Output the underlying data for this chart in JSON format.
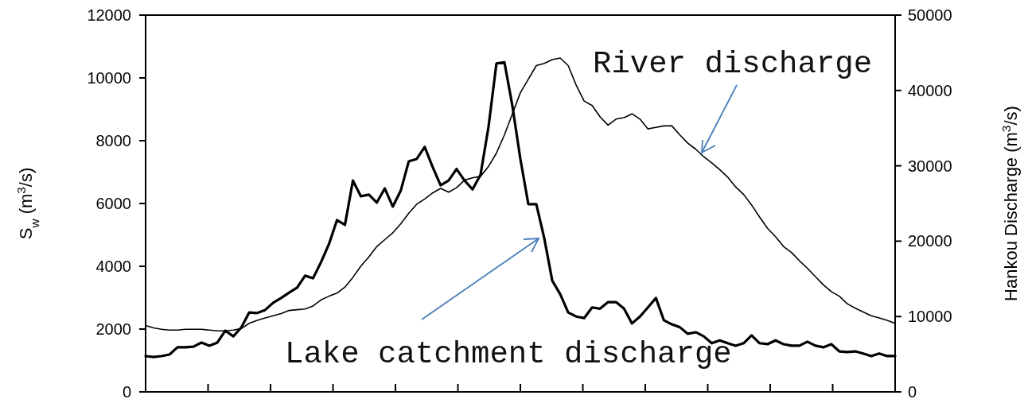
{
  "chart_data": {
    "type": "line",
    "ylabel": "S$_{w}$ (m$^{3}$/s)",
    "y2label": "Hankou Discharge (m$^{3}$/s)",
    "annotations": [
      "River discharge",
      "Lake catchment discharge"
    ],
    "categories": [
      null,
      null,
      null,
      null,
      null,
      null,
      null,
      null,
      null,
      null,
      null,
      null,
      null,
      null,
      null,
      null,
      null,
      null,
      null,
      null,
      null,
      null,
      null,
      null,
      null,
      null,
      null,
      null,
      null,
      null,
      null,
      null,
      null,
      null,
      null,
      null,
      null,
      null,
      null,
      null,
      null,
      null,
      null,
      null,
      null,
      null,
      null,
      null,
      null,
      null,
      null,
      null,
      null,
      null,
      null,
      null,
      null,
      null,
      null,
      null,
      null,
      null,
      null,
      null,
      null,
      null,
      null,
      null,
      null,
      null,
      null,
      null,
      null,
      null,
      null,
      null,
      null,
      null,
      null,
      null,
      null,
      null,
      null,
      null,
      null,
      null,
      null,
      null,
      null,
      null,
      null,
      null,
      null,
      null,
      null
    ],
    "series": [
      {
        "color": "#000000",
        "axis": "y",
        "values": [
          1140,
          1110,
          1140,
          1190,
          1420,
          1420,
          1440,
          1570,
          1470,
          1570,
          1950,
          1770,
          2050,
          2530,
          2510,
          2610,
          2840,
          2990,
          3160,
          3320,
          3700,
          3620,
          4130,
          4710,
          5470,
          5320,
          6730,
          6230,
          6280,
          6030,
          6480,
          5900,
          6410,
          7340,
          7420,
          7800,
          7160,
          6580,
          6730,
          7100,
          6730,
          6450,
          6910,
          8430,
          10460,
          10500,
          9110,
          7420,
          5980,
          5980,
          4890,
          3540,
          3110,
          2530,
          2400,
          2350,
          2690,
          2650,
          2860,
          2860,
          2650,
          2180,
          2400,
          2690,
          2990,
          2280,
          2150,
          2060,
          1850,
          1900,
          1770,
          1550,
          1640,
          1550,
          1470,
          1550,
          1800,
          1550,
          1520,
          1640,
          1520,
          1470,
          1470,
          1600,
          1470,
          1420,
          1520,
          1290,
          1270,
          1290,
          1220,
          1140,
          1220,
          1140,
          1140
        ]
      },
      {
        "color": "#000000",
        "axis": "y2",
        "values": [
          8800,
          8500,
          8300,
          8200,
          8200,
          8300,
          8300,
          8300,
          8200,
          8100,
          8100,
          8200,
          8400,
          9100,
          9500,
          9800,
          10100,
          10400,
          10800,
          10900,
          11000,
          11400,
          12200,
          12700,
          13100,
          13900,
          15200,
          16700,
          17900,
          19300,
          20200,
          21100,
          22300,
          23700,
          24900,
          25600,
          26400,
          27000,
          26500,
          27100,
          28100,
          28400,
          28600,
          29900,
          31700,
          34100,
          36900,
          39700,
          41500,
          43300,
          43600,
          44100,
          44300,
          43300,
          40700,
          38600,
          38000,
          36500,
          35400,
          36200,
          36400,
          36900,
          36200,
          34900,
          35100,
          35300,
          35300,
          34100,
          33000,
          32200,
          31200,
          30400,
          29500,
          28500,
          27200,
          26200,
          24800,
          23200,
          21700,
          20600,
          19300,
          18500,
          17400,
          16400,
          15300,
          14200,
          13300,
          12700,
          11700,
          11100,
          10600,
          10100,
          9800,
          9500,
          9100
        ]
      }
    ],
    "ylim": [
      0,
      12000
    ],
    "yticks": [
      0,
      2000,
      4000,
      6000,
      8000,
      10000,
      12000
    ],
    "y2lim": [
      0,
      50000
    ],
    "y2ticks": [
      0,
      10000,
      20000,
      30000,
      40000,
      50000
    ],
    "grid": false
  }
}
